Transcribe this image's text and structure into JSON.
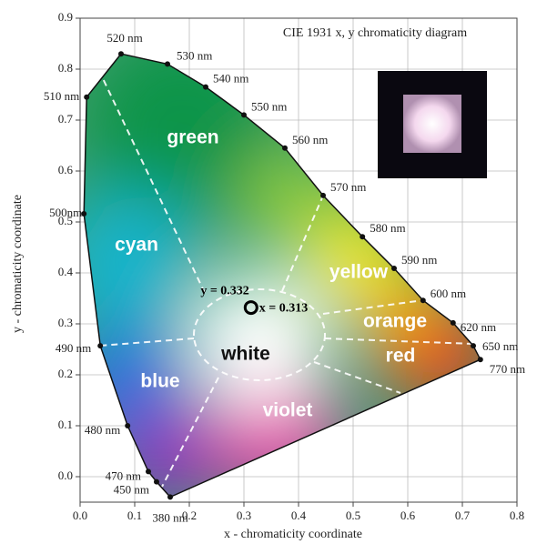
{
  "chart_data": {
    "type": "scatter",
    "title": "CIE 1931 x, y chromaticity diagram",
    "xlabel": "x - chromaticity coordinate",
    "ylabel": "y - chromaticity coordinate",
    "xlim": [
      0,
      0.8
    ],
    "ylim": [
      -0.05,
      0.9
    ],
    "xticks": [
      {
        "value": 0,
        "label": "0.0"
      },
      0.1,
      0.2,
      0.3,
      0.4,
      0.5,
      0.6,
      0.7,
      0.8
    ],
    "yticks": [
      {
        "value": 0,
        "label": "0.0"
      },
      0.1,
      0.2,
      0.3,
      0.4,
      0.5,
      0.6,
      0.7,
      0.8,
      0.9
    ],
    "grid": true,
    "locus": {
      "x": [
        0.165,
        0.14,
        0.125,
        0.087,
        0.037,
        0.007,
        0.012,
        0.075,
        0.16,
        0.23,
        0.3,
        0.375,
        0.445,
        0.517,
        0.575,
        0.628,
        0.683,
        0.72,
        0.733
      ],
      "y": [
        -0.04,
        -0.01,
        0.01,
        0.1,
        0.257,
        0.516,
        0.745,
        0.83,
        0.81,
        0.765,
        0.71,
        0.645,
        0.552,
        0.471,
        0.409,
        0.346,
        0.302,
        0.257,
        0.23
      ],
      "labels": [
        "380 nm",
        "450 nm",
        "470 nm",
        "480 nm",
        "490 nm",
        "500nm",
        "510 nm",
        "520 nm",
        "530 nm",
        "540 nm",
        "550 nm",
        "560 nm",
        "570 nm",
        "580 nm",
        "590 nm",
        "600 nm",
        "620 nm",
        "650 nm",
        "770 nm"
      ]
    },
    "white_point": {
      "x": 0.313,
      "y": 0.332,
      "value_labels": {
        "x": "x = 0.313",
        "y": "y = 0.332"
      }
    },
    "regions": [
      "green",
      "cyan",
      "yellow",
      "blue",
      "white",
      "orange",
      "red",
      "violet"
    ]
  }
}
